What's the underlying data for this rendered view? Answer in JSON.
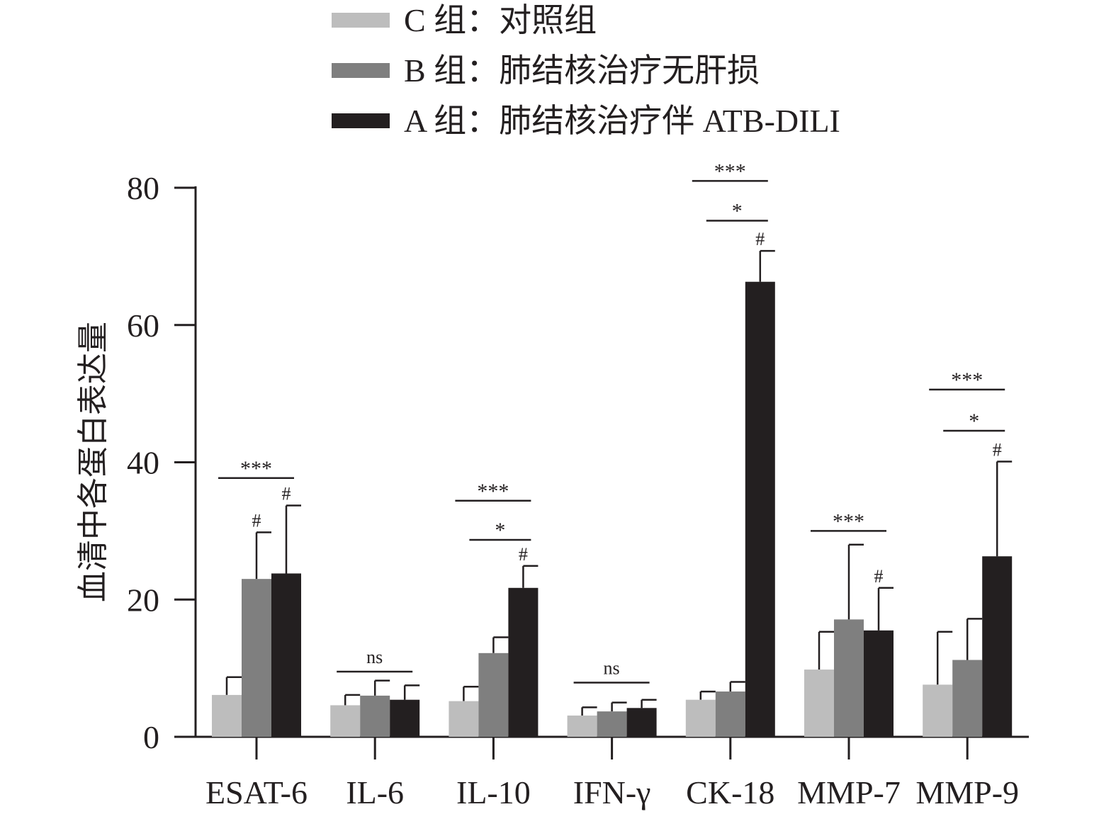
{
  "chart_data": {
    "type": "bar",
    "title": "",
    "xlabel": "",
    "ylabel": "血清中各蛋白表达量",
    "ylim": [
      0,
      80
    ],
    "yticks": [
      0,
      20,
      40,
      60,
      80
    ],
    "categories": [
      "ESAT-6",
      "IL-6",
      "IL-10",
      "IFN-γ",
      "CK-18",
      "MMP-7",
      "MMP-9"
    ],
    "legend_position": "top",
    "series": [
      {
        "name": "C 组：对照组",
        "color": "#bdbdbd",
        "values": [
          6.1,
          4.6,
          5.2,
          3.1,
          5.4,
          9.8,
          7.6
        ],
        "error_upper": [
          8.7,
          6.1,
          7.3,
          4.3,
          6.6,
          15.3,
          15.3
        ]
      },
      {
        "name": "B 组：肺结核治疗无肝损",
        "color": "#7f7f7f",
        "values": [
          23.0,
          6.0,
          12.2,
          3.7,
          6.6,
          17.1,
          11.2
        ],
        "error_upper": [
          29.8,
          8.2,
          14.5,
          5.0,
          8.0,
          28.0,
          17.2
        ]
      },
      {
        "name": "A 组：肺结核治疗伴 ATB-DILI",
        "color": "#231f20",
        "values": [
          23.8,
          5.4,
          21.7,
          4.2,
          66.3,
          15.5,
          26.3
        ],
        "error_upper": [
          33.7,
          7.5,
          24.9,
          5.4,
          70.8,
          21.7,
          40.1
        ]
      }
    ],
    "significance": [
      {
        "category": 0,
        "from": 0,
        "to": 2,
        "y": 37.7,
        "label": "***"
      },
      {
        "category": 1,
        "from": 0,
        "to": 2,
        "y": 9.5,
        "label": "ns"
      },
      {
        "category": 2,
        "from": 0,
        "to": 2,
        "y": 34.4,
        "label": "***"
      },
      {
        "category": 2,
        "from": 1,
        "to": 2,
        "y": 28.7,
        "label": "*"
      },
      {
        "category": 3,
        "from": 0,
        "to": 2,
        "y": 7.9,
        "label": "ns"
      },
      {
        "category": 4,
        "from": 0,
        "to": 2,
        "y": 81.0,
        "label": "***"
      },
      {
        "category": 4,
        "from": 1,
        "to": 2,
        "y": 75.2,
        "label": "*"
      },
      {
        "category": 5,
        "from": 0,
        "to": 2,
        "y": 30.0,
        "label": "***"
      },
      {
        "category": 6,
        "from": 0,
        "to": 2,
        "y": 50.6,
        "label": "***"
      },
      {
        "category": 6,
        "from": 1,
        "to": 2,
        "y": 44.6,
        "label": "*"
      }
    ],
    "hash_marks": [
      {
        "category": 0,
        "series": 1,
        "label": "#"
      },
      {
        "category": 0,
        "series": 2,
        "label": "#"
      },
      {
        "category": 2,
        "series": 2,
        "label": "#"
      },
      {
        "category": 4,
        "series": 2,
        "label": "#"
      },
      {
        "category": 5,
        "series": 2,
        "label": "#"
      },
      {
        "category": 6,
        "series": 2,
        "label": "#"
      }
    ]
  }
}
